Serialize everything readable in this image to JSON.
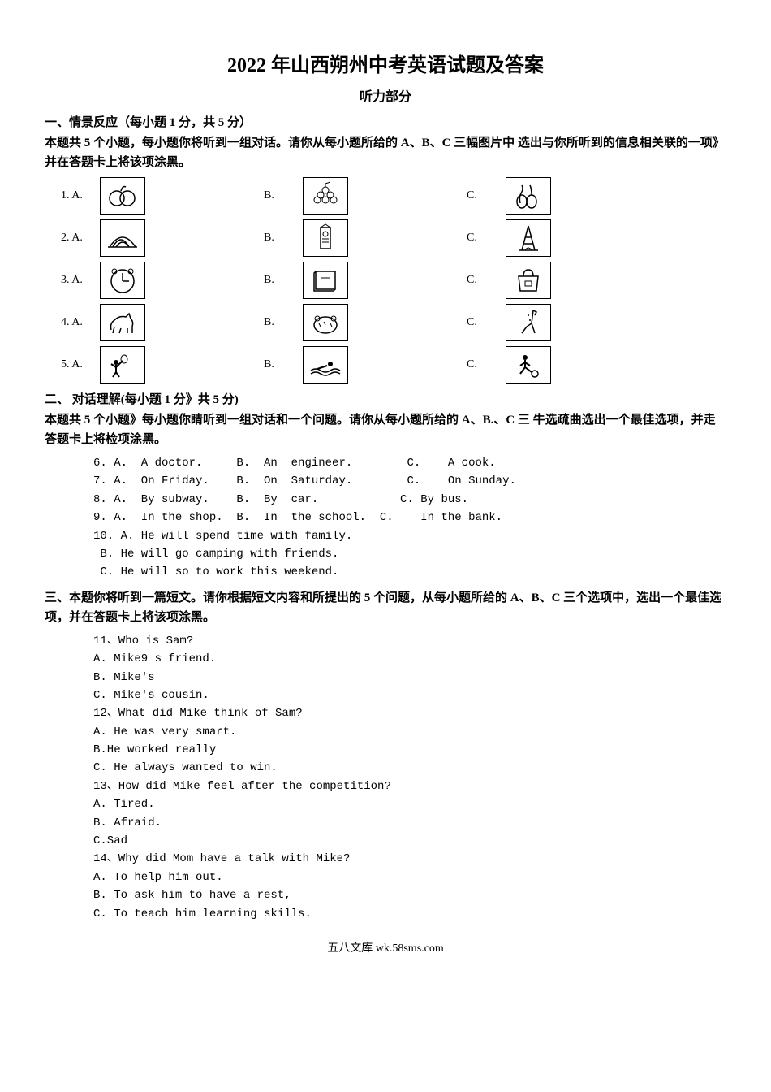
{
  "title": "2022 年山西朔州中考英语试题及答案",
  "subtitle": "听力部分",
  "section1": {
    "header": "一、情景反应（每小题 1 分，共 5 分）",
    "instruction": "本题共 5 个小题，每小题你将听到一组对话。请你从每小题所给的 A、B、C 三幅图片中 选出与你所听到的信息相关联的一项》并在答题卡上将该项涂黑。",
    "rows": [
      {
        "num": "1.",
        "a": "A.",
        "b": "B.",
        "c": "C.",
        "iconA": "apple",
        "iconB": "grapes",
        "iconC": "pears"
      },
      {
        "num": "2.",
        "a": "A.",
        "b": "B.",
        "c": "C.",
        "iconA": "opera",
        "iconB": "bigben",
        "iconC": "eiffel"
      },
      {
        "num": "3.",
        "a": "A.",
        "b": "B.",
        "c": "C.",
        "iconA": "clock",
        "iconB": "book",
        "iconC": "bag"
      },
      {
        "num": "4.",
        "a": "A.",
        "b": "B.",
        "c": "C.",
        "iconA": "horse",
        "iconB": "tiger",
        "iconC": "giraffe"
      },
      {
        "num": "5.",
        "a": "A.",
        "b": "B.",
        "c": "C.",
        "iconA": "tennis",
        "iconB": "swim",
        "iconC": "soccer"
      }
    ]
  },
  "section2": {
    "header": "二、   对话理解(每小题 1 分》共 5 分)",
    "instruction": "本题共 5 个小题》每小题你睛听到一组对话和一个问题。请你从每小题所给的 A、B.、C 三 牛选疏曲选出一个最佳选项，并走答题卡上将检项涂黑。",
    "questions": [
      "6. A.  A doctor.     B.  An  engineer.        C.    A cook.",
      "7. A.  On Friday.    B.  On  Saturday.        C.    On Sunday.",
      "8. A.  By subway.    B.  By  car.            C. By bus.",
      "9. A.  In the shop.  B.  In  the school.  C.    In the bank.",
      "10. A. He will spend time with family.",
      " B. He will go camping with friends.",
      " C. He will so to work this weekend."
    ]
  },
  "section3": {
    "header": "三、本题你将听到一篇短文。请你根据短文内容和所提出的 5 个问题，从每小题所给的 A、B、C 三个选项中，选出一个最佳选项，并在答题卡上将该项涂黑。",
    "lines": [
      "11、Who is Sam?",
      "A. Mike9 s friend.",
      "B. Mike's",
      "C. Mike's cousin.",
      "12、What did Mike think of Sam?",
      "A. He was very smart.",
      "B.He worked really",
      "C. He always wanted to win.",
      "13、How did Mike feel after the competition?",
      "A. Tired.",
      "B. Afraid.",
      "C.Sad",
      "14、Why did Mom have a talk with Mike?",
      "A. To help him out.",
      "B. To ask him to have a rest,",
      "C. To teach him learning skills."
    ]
  },
  "footer": "五八文库 wk.58sms.com",
  "colors": {
    "text": "#000000",
    "background": "#ffffff",
    "border": "#000000"
  }
}
